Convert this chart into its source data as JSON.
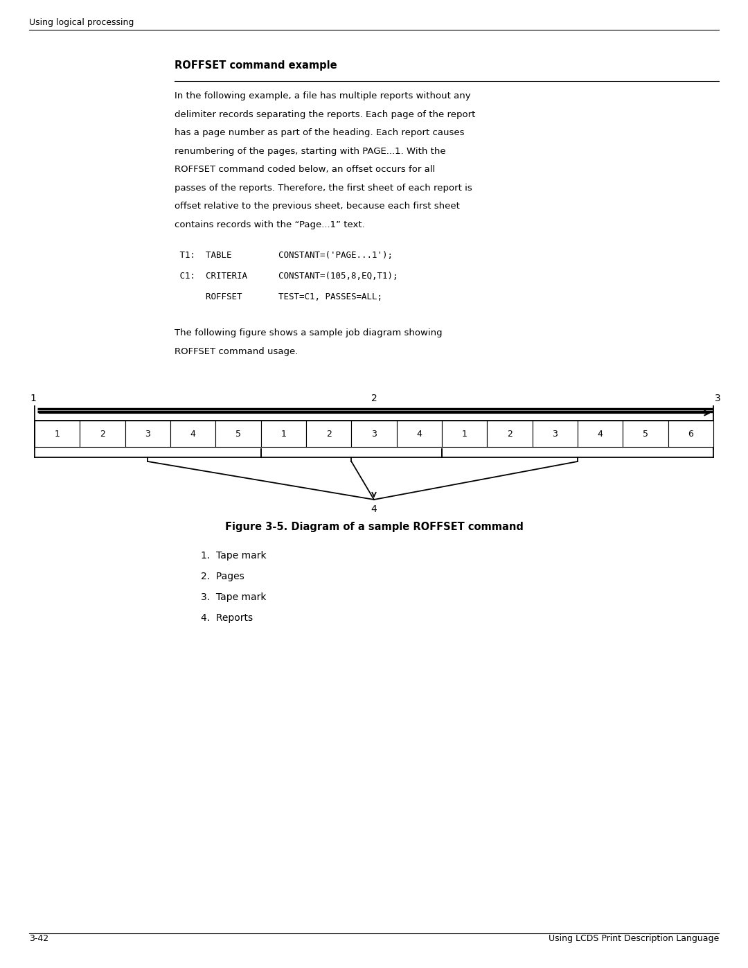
{
  "page_bg": "#ffffff",
  "page_width": 10.8,
  "page_height": 13.97,
  "header_text": "Using logical processing",
  "footer_left": "3-42",
  "footer_right": "Using LCDS Print Description Language",
  "section_title": "ROFFSET command example",
  "body_lines": [
    "In the following example, a file has multiple reports without any",
    "delimiter records separating the reports. Each page of the report",
    "has a page number as part of the heading. Each report causes",
    "renumbering of the pages, starting with PAGE...1. With the",
    "ROFFSET command coded below, an offset occurs for all",
    "passes of the reports. Therefore, the first sheet of each report is",
    "offset relative to the previous sheet, because each first sheet",
    "contains records with the “Page...1” text."
  ],
  "code_lines": [
    " T1:  TABLE         CONSTANT=('PAGE...1');",
    " C1:  CRITERIA      CONSTANT=(105,8,EQ,T1);",
    "      ROFFSET       TEST=C1, PASSES=ALL;"
  ],
  "follow_lines": [
    "The following figure shows a sample job diagram showing",
    "ROFFSET command usage."
  ],
  "figure_caption": "Figure 3-5. Diagram of a sample ROFFSET command",
  "legend_items": [
    "1.  Tape mark",
    "2.  Pages",
    "3.  Tape mark",
    "4.  Reports"
  ],
  "page_numbers": [
    1,
    2,
    3,
    4,
    5,
    1,
    2,
    3,
    4,
    1,
    2,
    3,
    4,
    5,
    6
  ],
  "group_boundaries": [
    0,
    5,
    9,
    15
  ],
  "body_fontsize": 9.5,
  "code_fontsize": 9.0,
  "header_fontsize": 9.0,
  "title_fontsize": 10.5,
  "diagram_fontsize": 10.0,
  "caption_fontsize": 10.5,
  "legend_fontsize": 10.0,
  "footer_fontsize": 9.0
}
